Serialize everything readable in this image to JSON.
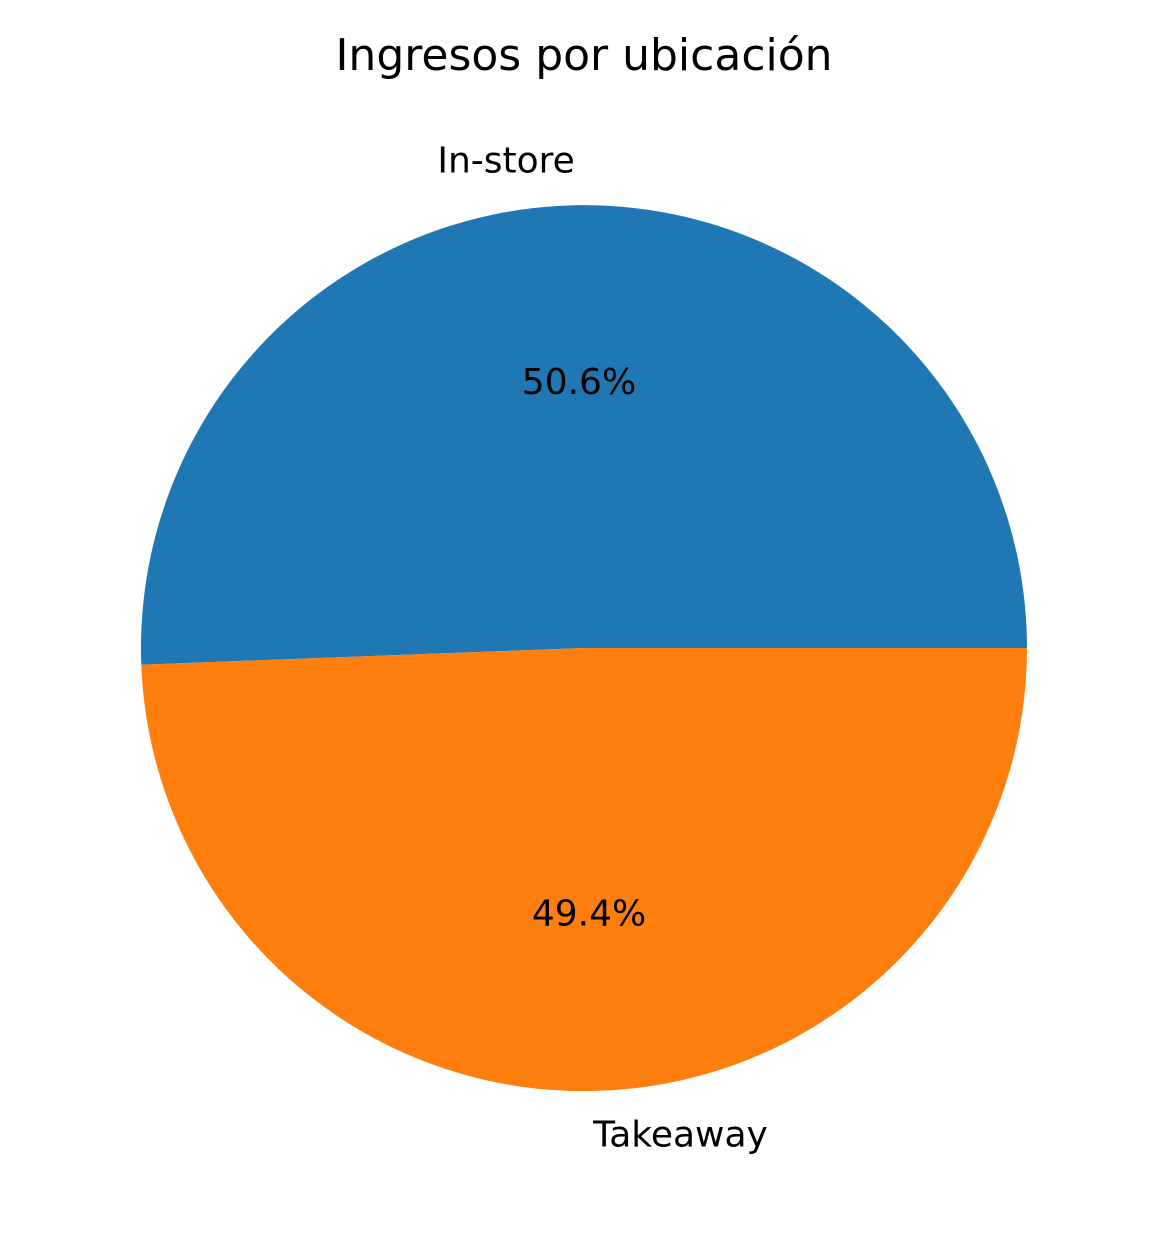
{
  "chart_data": {
    "type": "pie",
    "title": "Ingresos por ubicación",
    "slices": [
      {
        "label": "In-store",
        "value": 50.6,
        "pct_label": "50.6%",
        "color": "#1f77b4"
      },
      {
        "label": "Takeaway",
        "value": 49.4,
        "pct_label": "49.4%",
        "color": "#ff7f0e"
      }
    ],
    "start_angle_deg": 0,
    "direction": "counterclockwise",
    "legend": "none"
  }
}
